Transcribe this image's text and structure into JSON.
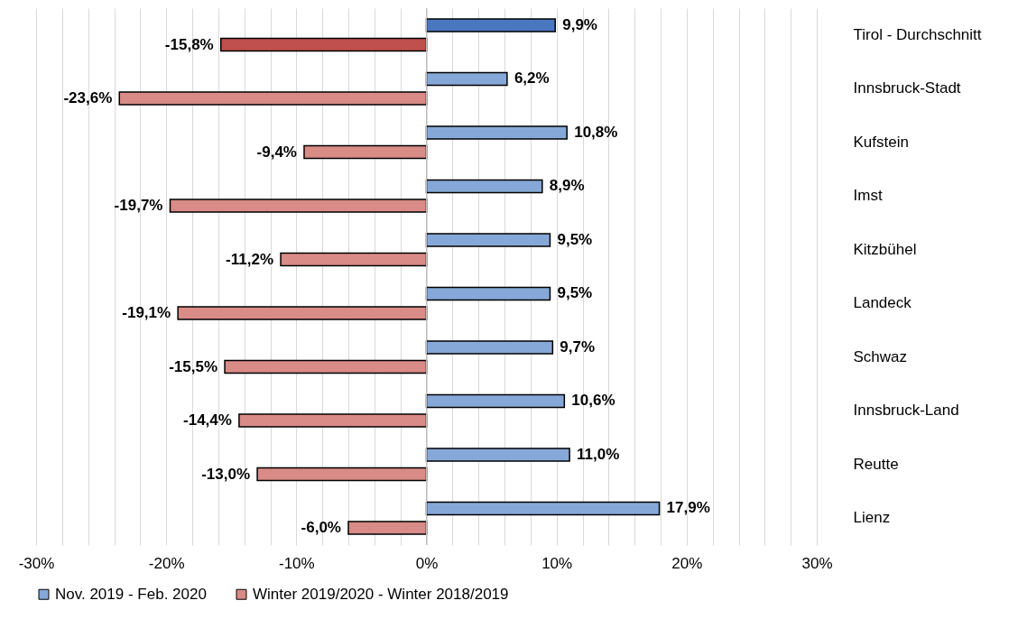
{
  "chart_data": {
    "type": "bar",
    "orientation": "horizontal",
    "categories": [
      "Tirol - Durchschnitt",
      "Innsbruck-Stadt",
      "Kufstein",
      "Imst",
      "Kitzbühel",
      "Landeck",
      "Schwaz",
      "Innsbruck-Land",
      "Reutte",
      "Lienz"
    ],
    "series": [
      {
        "name": "Nov. 2019 - Feb. 2020",
        "color": "#86a8d8",
        "colors": [
          "#4a78c0",
          "#86a8d8",
          "#86a8d8",
          "#86a8d8",
          "#86a8d8",
          "#86a8d8",
          "#86a8d8",
          "#86a8d8",
          "#86a8d8",
          "#86a8d8"
        ],
        "values": [
          9.9,
          6.2,
          10.8,
          8.9,
          9.5,
          9.5,
          9.7,
          10.6,
          11.0,
          17.9
        ],
        "value_labels": [
          "9,9%",
          "6,2%",
          "10,8%",
          "8,9%",
          "9,5%",
          "9,5%",
          "9,7%",
          "10,6%",
          "11,0%",
          "17,9%"
        ]
      },
      {
        "name": "Winter 2019/2020 - Winter 2018/2019",
        "color": "#d98b87",
        "colors": [
          "#c0504d",
          "#d98b87",
          "#d98b87",
          "#d98b87",
          "#d98b87",
          "#d98b87",
          "#d98b87",
          "#d98b87",
          "#d98b87",
          "#d98b87"
        ],
        "values": [
          -15.8,
          -23.6,
          -9.4,
          -19.7,
          -11.2,
          -19.1,
          -15.5,
          -14.4,
          -13.0,
          -6.0
        ],
        "value_labels": [
          "-15,8%",
          "-23,6%",
          "-9,4%",
          "-19,7%",
          "-11,2%",
          "-19,1%",
          "-15,5%",
          "-14,4%",
          "-13,0%",
          "-6,0%"
        ]
      }
    ],
    "xlim": [
      -30,
      30
    ],
    "xticks": [
      {
        "value": -30,
        "label": "-30%"
      },
      {
        "value": -28,
        "label": null
      },
      {
        "value": -26,
        "label": null
      },
      {
        "value": -24,
        "label": null
      },
      {
        "value": -22,
        "label": null
      },
      {
        "value": -20,
        "label": "-20%"
      },
      {
        "value": -18,
        "label": null
      },
      {
        "value": -16,
        "label": null
      },
      {
        "value": -14,
        "label": null
      },
      {
        "value": -12,
        "label": null
      },
      {
        "value": -10,
        "label": "-10%"
      },
      {
        "value": -8,
        "label": null
      },
      {
        "value": -6,
        "label": null
      },
      {
        "value": -4,
        "label": null
      },
      {
        "value": -2,
        "label": null
      },
      {
        "value": 0,
        "label": "0%"
      },
      {
        "value": 2,
        "label": null
      },
      {
        "value": 4,
        "label": null
      },
      {
        "value": 6,
        "label": null
      },
      {
        "value": 8,
        "label": null
      },
      {
        "value": 10,
        "label": "10%"
      },
      {
        "value": 12,
        "label": null
      },
      {
        "value": 14,
        "label": null
      },
      {
        "value": 16,
        "label": null
      },
      {
        "value": 18,
        "label": null
      },
      {
        "value": 20,
        "label": "20%"
      },
      {
        "value": 22,
        "label": null
      },
      {
        "value": 24,
        "label": null
      },
      {
        "value": 26,
        "label": null
      },
      {
        "value": 28,
        "label": null
      },
      {
        "value": 30,
        "label": "30%"
      }
    ],
    "grid": "x",
    "legend": "bottom"
  }
}
